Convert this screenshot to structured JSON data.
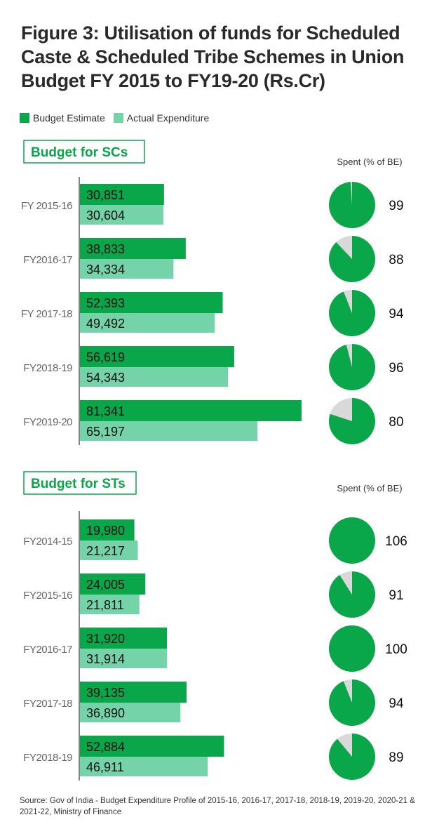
{
  "title": "Figure 3: Utilisation of funds for Scheduled Caste & Scheduled Tribe Schemes in Union Budget FY 2015 to FY19-20 (Rs.Cr)",
  "legend": [
    {
      "label": "Budget Estimate",
      "color": "#0aa64a"
    },
    {
      "label": "Actual Expenditure",
      "color": "#74d3a8"
    }
  ],
  "source": "Source: Gov of India - Budget Expenditure Profile of 2015-16, 2016-17, 2017-18, 2018-19, 2019-20, 2020-21 & 2021-22, Ministry of Finance",
  "chart_data": [
    {
      "type": "bar",
      "title": "Budget for SCs",
      "spent_label": "Spent (% of BE)",
      "categories": [
        "FY 2015-16",
        "FY2016-17",
        "FY 2017-18",
        "FY2018-19",
        "FY2019-20"
      ],
      "series": [
        {
          "name": "Budget Estimate",
          "values": [
            30851,
            38833,
            52393,
            56619,
            81341
          ]
        },
        {
          "name": "Actual Expenditure",
          "values": [
            30604,
            34334,
            49492,
            54343,
            65197
          ]
        }
      ],
      "value_labels": {
        "budget": [
          "30,851",
          "38,833",
          "52,393",
          "56,619",
          "81,341"
        ],
        "actual": [
          "30,604",
          "34,334",
          "49,492",
          "54,343",
          "65,197"
        ]
      },
      "spent_pct": [
        99,
        88,
        94,
        96,
        80
      ],
      "xlim": [
        0,
        90000
      ]
    },
    {
      "type": "bar",
      "title": "Budget for STs",
      "spent_label": "Spent (% of BE)",
      "categories": [
        "FY2014-15",
        "FY2015-16",
        "FY2016-17",
        "FY2017-18",
        "FY2018-19"
      ],
      "series": [
        {
          "name": "Budget Estimate",
          "values": [
            19980,
            24005,
            31920,
            39135,
            52884
          ]
        },
        {
          "name": "Actual Expenditure",
          "values": [
            21217,
            21811,
            31914,
            36890,
            46911
          ]
        }
      ],
      "value_labels": {
        "budget": [
          "19,980",
          "24,005",
          "31,920",
          "39,135",
          "52,884"
        ],
        "actual": [
          "21,217",
          "21,811",
          "31,914",
          "36,890",
          "46,911"
        ]
      },
      "spent_pct": [
        106,
        91,
        100,
        94,
        89
      ],
      "xlim": [
        0,
        90000
      ]
    }
  ]
}
